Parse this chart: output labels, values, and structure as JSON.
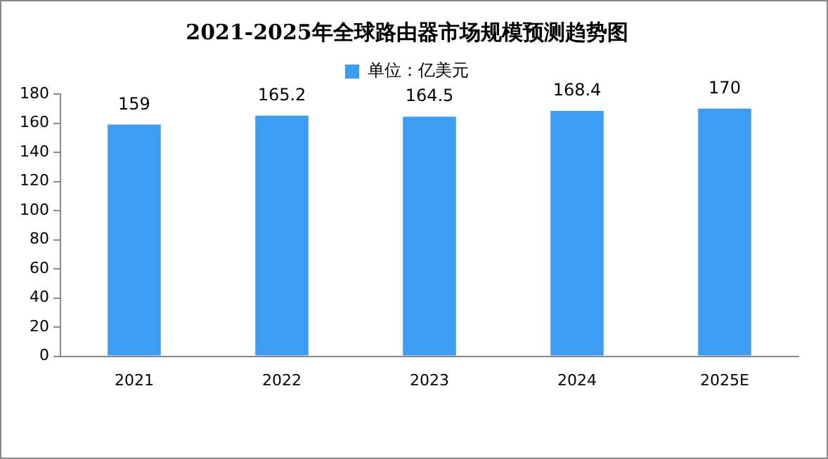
{
  "chart_data": {
    "type": "bar",
    "title": "2021-2025年全球路由器市场规模预测趋势图",
    "categories": [
      "2021",
      "2022",
      "2023",
      "2024",
      "2025E"
    ],
    "series": [
      {
        "name": "单位：亿美元",
        "color": "#3d9df3",
        "values": [
          159,
          165.2,
          164.5,
          168.4,
          170
        ]
      }
    ],
    "ylim": [
      0,
      180
    ],
    "yticks": [
      0,
      20,
      40,
      60,
      80,
      100,
      120,
      140,
      160,
      180
    ],
    "grid": false,
    "legend": "top",
    "data_labels": true
  }
}
